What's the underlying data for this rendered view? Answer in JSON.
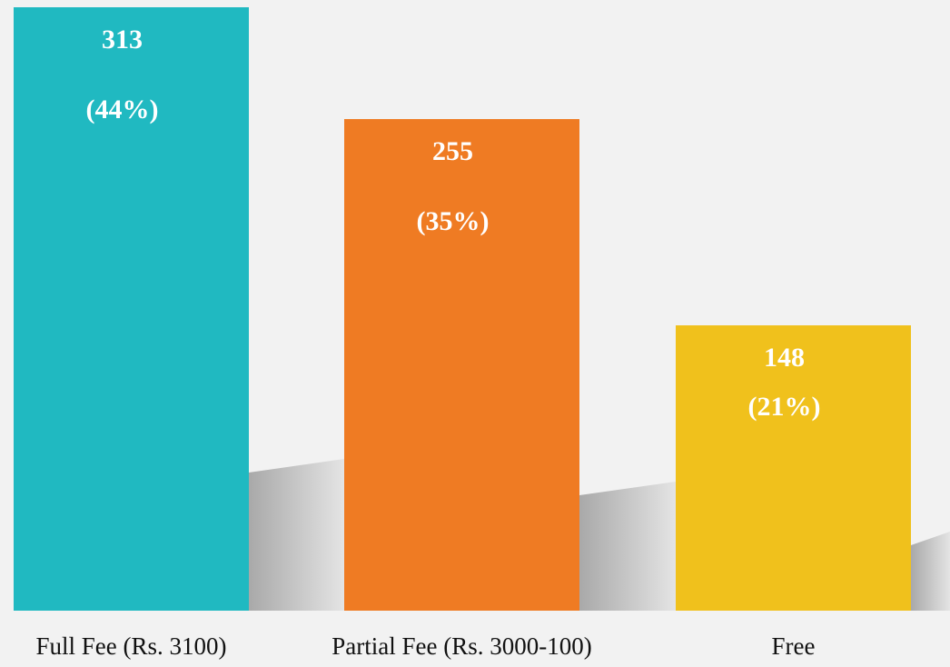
{
  "chart_data": {
    "type": "bar",
    "categories": [
      "Full Fee (Rs. 3100)",
      "Partial Fee (Rs. 3000-100)",
      "Free"
    ],
    "values": [
      313,
      255,
      148
    ],
    "percent_labels": [
      "(44%)",
      "(35%)",
      "(21%)"
    ],
    "colors": [
      "#20b9c1",
      "#ef7b23",
      "#f0c11c"
    ]
  }
}
